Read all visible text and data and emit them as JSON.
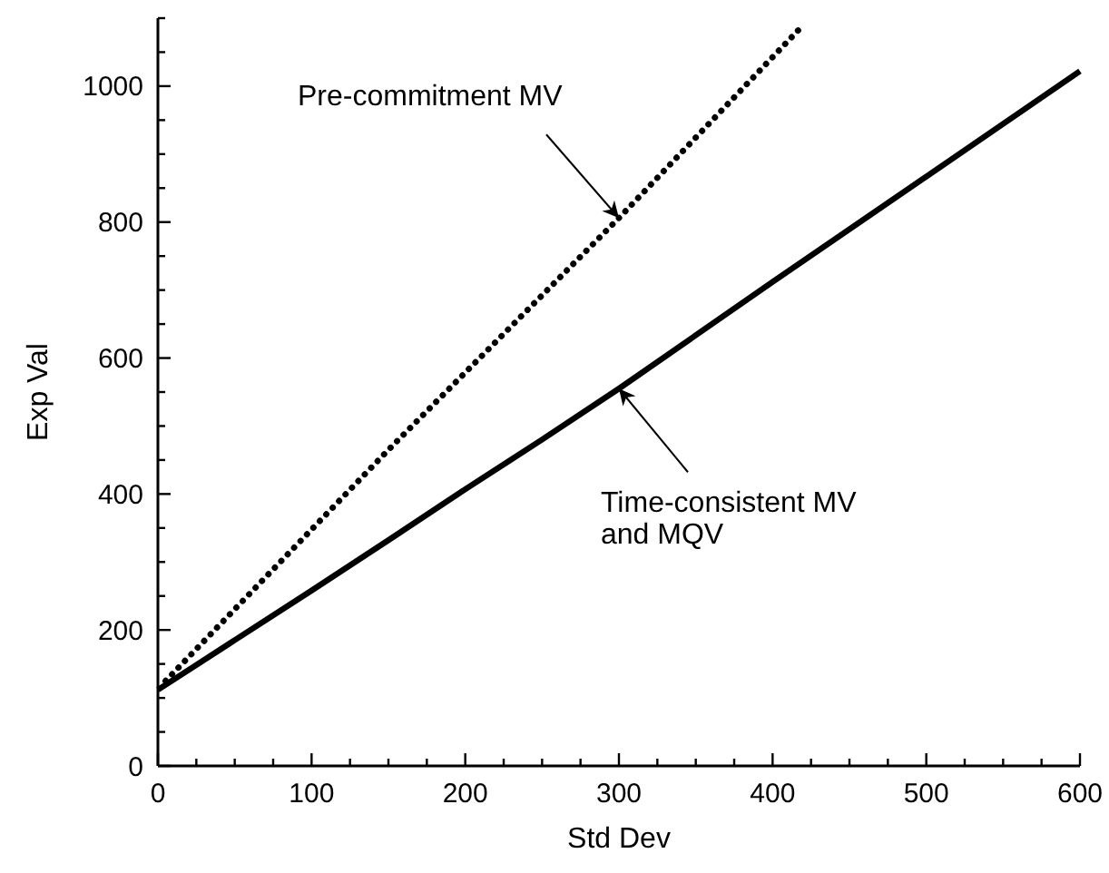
{
  "chart_data": {
    "type": "line",
    "xlabel": "Std Dev",
    "ylabel": "Exp Val",
    "xlim": [
      0,
      600
    ],
    "ylim": [
      0,
      1100
    ],
    "xticks": [
      0,
      {
        "value": 25,
        "label": null
      },
      {
        "value": 50,
        "label": null
      },
      {
        "value": 75,
        "label": null
      },
      100,
      {
        "value": 125,
        "label": null
      },
      {
        "value": 150,
        "label": null
      },
      {
        "value": 175,
        "label": null
      },
      200,
      {
        "value": 225,
        "label": null
      },
      {
        "value": 250,
        "label": null
      },
      {
        "value": 275,
        "label": null
      },
      300,
      {
        "value": 325,
        "label": null
      },
      {
        "value": 350,
        "label": null
      },
      {
        "value": 375,
        "label": null
      },
      400,
      {
        "value": 425,
        "label": null
      },
      {
        "value": 450,
        "label": null
      },
      {
        "value": 475,
        "label": null
      },
      500,
      {
        "value": 525,
        "label": null
      },
      {
        "value": 550,
        "label": null
      },
      {
        "value": 575,
        "label": null
      },
      600
    ],
    "yticks": [
      0,
      {
        "value": 50,
        "label": null
      },
      {
        "value": 100,
        "label": null
      },
      {
        "value": 150,
        "label": null
      },
      200,
      {
        "value": 250,
        "label": null
      },
      {
        "value": 300,
        "label": null
      },
      {
        "value": 350,
        "label": null
      },
      400,
      {
        "value": 450,
        "label": null
      },
      {
        "value": 500,
        "label": null
      },
      {
        "value": 550,
        "label": null
      },
      600,
      {
        "value": 650,
        "label": null
      },
      {
        "value": 700,
        "label": null
      },
      {
        "value": 750,
        "label": null
      },
      800,
      {
        "value": 850,
        "label": null
      },
      {
        "value": 900,
        "label": null
      },
      {
        "value": 950,
        "label": null
      },
      1000,
      {
        "value": 1050,
        "label": null
      },
      {
        "value": 1100,
        "label": null
      }
    ],
    "series": [
      {
        "color": "#000000",
        "line_style": "dotted",
        "x": [
          5,
          150,
          300,
          420
        ],
        "values": [
          125,
          465,
          806,
          1090
        ]
      },
      {
        "color": "#000000",
        "line_style": "solid",
        "x": [
          0,
          50,
          100,
          150,
          200,
          250,
          300,
          400,
          500,
          600
        ],
        "values": [
          112,
          185,
          258,
          332,
          407,
          480,
          555,
          712,
          867,
          1022
        ]
      }
    ],
    "annotations": [
      {
        "text": "Pre-commitment MV",
        "x": 300,
        "y": 806
      },
      {
        "text": "Time-consistent MV\nand MQV",
        "x": 300,
        "y": 555
      }
    ]
  }
}
